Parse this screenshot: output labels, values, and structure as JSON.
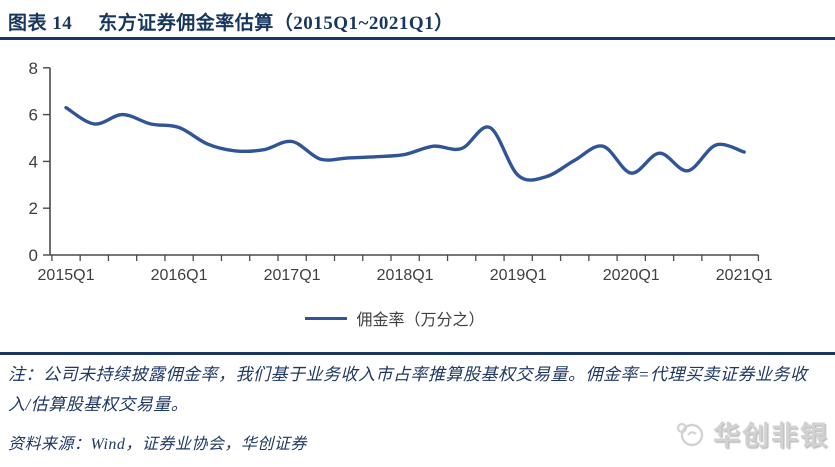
{
  "figure_header": {
    "label": "图表 14",
    "title": "东方证券佣金率估算（2015Q1~2021Q1）"
  },
  "chart_data": {
    "type": "line",
    "title": "东方证券佣金率估算（2015Q1~2021Q1）",
    "x": [
      "2015Q1",
      "2015Q2",
      "2015Q3",
      "2015Q4",
      "2016Q1",
      "2016Q2",
      "2016Q3",
      "2016Q4",
      "2017Q1",
      "2017Q2",
      "2017Q3",
      "2017Q4",
      "2018Q1",
      "2018Q2",
      "2018Q3",
      "2018Q4",
      "2019Q1",
      "2019Q2",
      "2019Q3",
      "2019Q4",
      "2020Q1",
      "2020Q2",
      "2020Q3",
      "2020Q4",
      "2021Q1"
    ],
    "series": [
      {
        "name": "佣金率（万分之）",
        "color": "#2F5597",
        "values": [
          6.3,
          5.6,
          6.0,
          5.6,
          5.45,
          4.75,
          4.45,
          4.5,
          4.85,
          4.1,
          4.15,
          4.2,
          4.3,
          4.65,
          4.55,
          5.45,
          3.4,
          3.35,
          4.05,
          4.65,
          3.5,
          4.35,
          3.6,
          4.7,
          4.4
        ]
      }
    ],
    "ylim": [
      0,
      8
    ],
    "yticks": [
      0,
      2,
      4,
      6,
      8
    ],
    "xtick_labels": [
      "2015Q1",
      "2016Q1",
      "2017Q1",
      "2018Q1",
      "2019Q1",
      "2020Q1",
      "2021Q1"
    ],
    "grid": false,
    "legend_position": "bottom-center",
    "line_smooth": true
  },
  "note": {
    "text": "注：公司未持续披露佣金率，我们基于业务收入市占率推算股基权交易量。佣金率=代理买卖证券业务收入/估算股基权交易量。"
  },
  "source": {
    "text": "资料来源：Wind，证券业协会，华创证券"
  },
  "watermark": {
    "text": "华创非银"
  },
  "colors": {
    "navy": "#17375E",
    "line_blue": "#2F5597",
    "axis_text": "#3F3F3F",
    "axis_stroke": "#4A4A4A",
    "watermark_gray": "#D2D2D2"
  }
}
